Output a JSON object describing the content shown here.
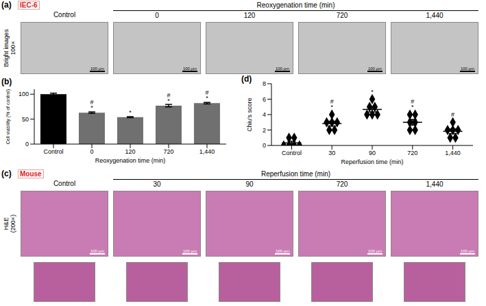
{
  "panel_a": {
    "label": "(a)",
    "model": "IEC-6",
    "row_label": "Bright images",
    "magnification": "100×",
    "group_label": "Reoxygenation time (min)",
    "columns": [
      "Control",
      "0",
      "120",
      "720",
      "1,440"
    ],
    "scale_bar": "100 µm"
  },
  "panel_c": {
    "label": "(c)",
    "model": "Mouse",
    "row_label": "H&E",
    "magnification": "(200×)",
    "group_label": "Reperfusion time (min)",
    "columns": [
      "Control",
      "30",
      "90",
      "720",
      "1,440"
    ],
    "scale_bar": "100 µm"
  },
  "chart_data": [
    {
      "title": "(b)",
      "type": "bar",
      "categories": [
        "Control",
        "0",
        "120",
        "720",
        "1,440"
      ],
      "values": [
        100,
        63,
        54,
        77,
        82
      ],
      "errors": [
        2,
        1.5,
        1,
        2.5,
        1.5
      ],
      "colors": [
        "#000000",
        "#707070",
        "#707070",
        "#707070",
        "#707070"
      ],
      "ylabel": "Cell viability (% of control)",
      "xlabel": "Reoxygenation time (min)",
      "ylim": [
        0,
        110
      ],
      "yticks": [
        0,
        50,
        100
      ],
      "annotations": [
        {
          "category": "0",
          "text": "#"
        },
        {
          "category": "0",
          "text": "*"
        },
        {
          "category": "120",
          "text": "*"
        },
        {
          "category": "720",
          "text": "#"
        },
        {
          "category": "720",
          "text": "*"
        },
        {
          "category": "1,440",
          "text": "#"
        },
        {
          "category": "1,440",
          "text": "*"
        }
      ]
    },
    {
      "title": "(d)",
      "type": "scatter",
      "categories": [
        "Control",
        "30",
        "90",
        "720",
        "1,440"
      ],
      "points": [
        [
          0,
          0,
          0,
          0,
          1,
          1
        ],
        [
          2,
          2,
          3,
          3,
          3,
          4
        ],
        [
          4,
          4,
          4,
          5,
          5,
          6
        ],
        [
          2,
          2,
          3,
          3,
          4,
          4
        ],
        [
          1,
          1,
          2,
          2,
          2,
          3
        ]
      ],
      "means": [
        0.33,
        2.83,
        4.67,
        3.0,
        1.83
      ],
      "errors": [
        0.21,
        0.31,
        0.33,
        0.37,
        0.31
      ],
      "color": "#000000",
      "marker": "diamond",
      "ylabel": "Chiu's score",
      "xlabel": "Reperfusion time (min)",
      "ylim": [
        0,
        8
      ],
      "yticks": [
        0,
        2,
        4,
        6,
        8
      ],
      "annotations": [
        {
          "category": "30",
          "text": "#"
        },
        {
          "category": "30",
          "text": "*"
        },
        {
          "category": "90",
          "text": "*"
        },
        {
          "category": "720",
          "text": "#"
        },
        {
          "category": "720",
          "text": "*"
        },
        {
          "category": "1,440",
          "text": "#"
        }
      ]
    }
  ]
}
